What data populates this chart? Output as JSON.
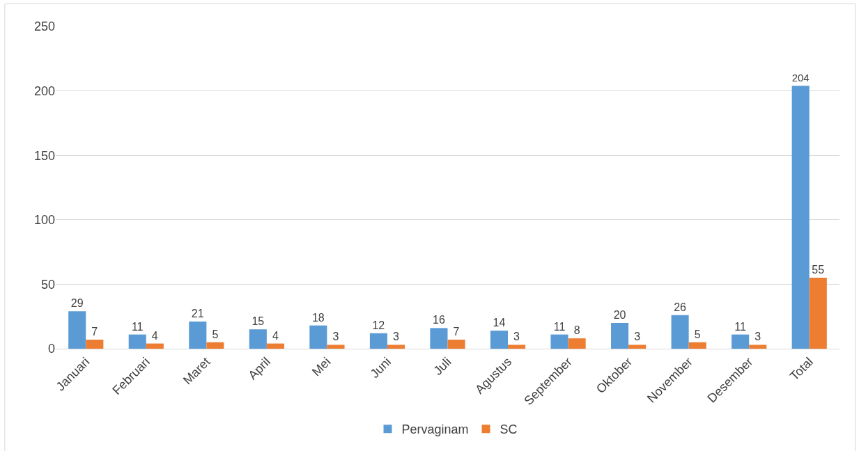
{
  "chart_data": {
    "type": "bar",
    "categories": [
      "Januari",
      "Februari",
      "Maret",
      "April",
      "Mei",
      "Juni",
      "Juli",
      "Agustus",
      "September",
      "Oktober",
      "November",
      "Desember",
      "Total"
    ],
    "series": [
      {
        "name": "Pervaginam",
        "color": "#5b9bd5",
        "values": [
          29,
          11,
          21,
          15,
          18,
          12,
          16,
          14,
          11,
          20,
          26,
          11,
          204
        ]
      },
      {
        "name": "SC",
        "color": "#ed7d31",
        "values": [
          7,
          4,
          5,
          4,
          3,
          3,
          7,
          3,
          8,
          3,
          5,
          3,
          55
        ]
      }
    ],
    "ylim": [
      0,
      250
    ],
    "yticks": [
      0,
      50,
      100,
      150,
      200,
      250
    ],
    "grid": "y",
    "legend": "bottom",
    "data_labels": true
  }
}
